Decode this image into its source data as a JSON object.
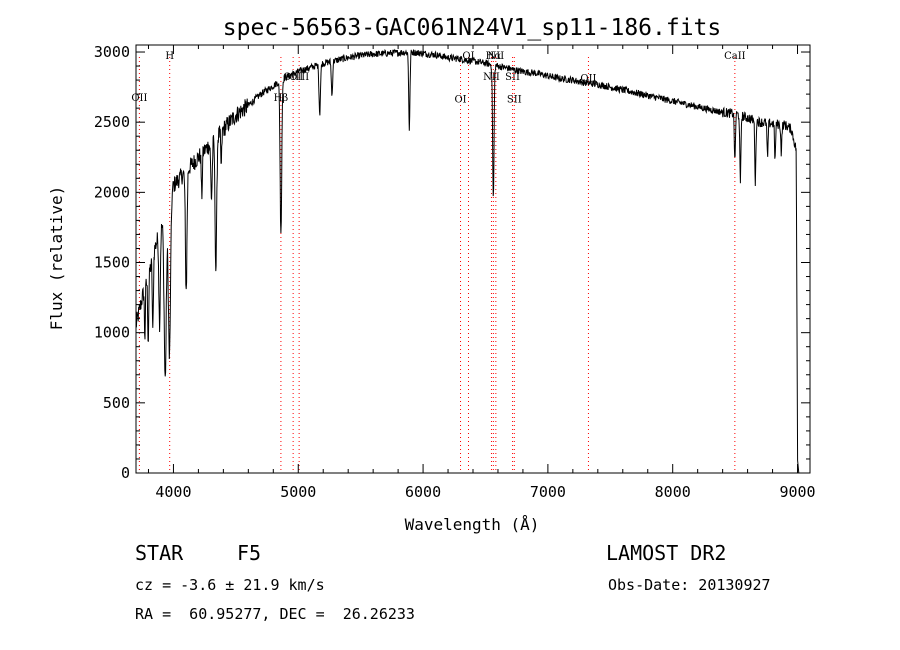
{
  "chart_data": {
    "type": "line",
    "title": "spec-56563-GAC061N24V1_sp11-186.fits",
    "xlabel": "Wavelength (Å)",
    "ylabel": "Flux (relative)",
    "xlim": [
      3700,
      9100
    ],
    "ylim": [
      0,
      3050
    ],
    "x_ticks": [
      4000,
      5000,
      6000,
      7000,
      8000,
      9000
    ],
    "y_ticks": [
      0,
      500,
      1000,
      1500,
      2000,
      2500,
      3000
    ],
    "grid": false,
    "line_color": "#000000",
    "line_marker_color": "#ff0000",
    "continuum": [
      [
        3700,
        1050
      ],
      [
        3750,
        1250
      ],
      [
        3800,
        1400
      ],
      [
        3850,
        1600
      ],
      [
        3900,
        1750
      ],
      [
        3950,
        1850
      ],
      [
        4000,
        2050
      ],
      [
        4100,
        2150
      ],
      [
        4200,
        2250
      ],
      [
        4300,
        2350
      ],
      [
        4400,
        2450
      ],
      [
        4500,
        2550
      ],
      [
        4600,
        2620
      ],
      [
        4700,
        2700
      ],
      [
        4800,
        2760
      ],
      [
        4900,
        2820
      ],
      [
        5000,
        2860
      ],
      [
        5100,
        2890
      ],
      [
        5200,
        2920
      ],
      [
        5300,
        2940
      ],
      [
        5400,
        2960
      ],
      [
        5500,
        2975
      ],
      [
        5600,
        2985
      ],
      [
        5700,
        2990
      ],
      [
        5800,
        2995
      ],
      [
        5900,
        3000
      ],
      [
        6000,
        2990
      ],
      [
        6100,
        2980
      ],
      [
        6200,
        2960
      ],
      [
        6300,
        2950
      ],
      [
        6400,
        2935
      ],
      [
        6500,
        2920
      ],
      [
        6600,
        2900
      ],
      [
        6700,
        2880
      ],
      [
        6800,
        2860
      ],
      [
        6900,
        2850
      ],
      [
        7000,
        2830
      ],
      [
        7100,
        2810
      ],
      [
        7200,
        2800
      ],
      [
        7300,
        2780
      ],
      [
        7400,
        2770
      ],
      [
        7500,
        2750
      ],
      [
        7600,
        2730
      ],
      [
        7700,
        2710
      ],
      [
        7800,
        2690
      ],
      [
        7900,
        2670
      ],
      [
        8000,
        2650
      ],
      [
        8100,
        2630
      ],
      [
        8200,
        2610
      ],
      [
        8300,
        2590
      ],
      [
        8400,
        2570
      ],
      [
        8500,
        2560
      ],
      [
        8600,
        2530
      ],
      [
        8700,
        2500
      ],
      [
        8800,
        2490
      ],
      [
        8900,
        2480
      ],
      [
        8950,
        2450
      ],
      [
        8990,
        2300
      ],
      [
        9000,
        100
      ],
      [
        9010,
        0
      ]
    ],
    "absorption_features": [
      {
        "center": 3934,
        "depth": 1150,
        "width": 12
      },
      {
        "center": 3968,
        "depth": 1100,
        "width": 12
      },
      {
        "center": 3889,
        "depth": 650,
        "width": 8
      },
      {
        "center": 3835,
        "depth": 550,
        "width": 6
      },
      {
        "center": 3798,
        "depth": 450,
        "width": 6
      },
      {
        "center": 3771,
        "depth": 350,
        "width": 5
      },
      {
        "center": 4102,
        "depth": 850,
        "width": 9
      },
      {
        "center": 4227,
        "depth": 300,
        "width": 6
      },
      {
        "center": 4305,
        "depth": 400,
        "width": 8
      },
      {
        "center": 4340,
        "depth": 950,
        "width": 9
      },
      {
        "center": 4383,
        "depth": 250,
        "width": 6
      },
      {
        "center": 4861,
        "depth": 1100,
        "width": 9
      },
      {
        "center": 5172,
        "depth": 350,
        "width": 8
      },
      {
        "center": 5270,
        "depth": 250,
        "width": 7
      },
      {
        "center": 5890,
        "depth": 550,
        "width": 7
      },
      {
        "center": 6563,
        "depth": 950,
        "width": 8
      },
      {
        "center": 8498,
        "depth": 350,
        "width": 6
      },
      {
        "center": 8542,
        "depth": 500,
        "width": 6
      },
      {
        "center": 8662,
        "depth": 450,
        "width": 6
      },
      {
        "center": 8760,
        "depth": 250,
        "width": 6
      },
      {
        "center": 8820,
        "depth": 250,
        "width": 6
      },
      {
        "center": 8870,
        "depth": 200,
        "width": 6
      }
    ],
    "noise_amplitude": 70,
    "line_markers": [
      {
        "label": "OII",
        "x": 3727,
        "label_y": 2650
      },
      {
        "label": "H",
        "x": 3970,
        "label_y": 2950
      },
      {
        "label": "Hβ",
        "x": 4861,
        "label_y": 2650
      },
      {
        "label": "OIII",
        "x": 4959,
        "label_y": 2800
      },
      {
        "label": "OIII",
        "x": 5007,
        "label_y": 2800
      },
      {
        "label": "OI",
        "x": 6300,
        "label_y": 2640
      },
      {
        "label": "OI",
        "x": 6364,
        "label_y": 2950
      },
      {
        "label": "NII",
        "x": 6548,
        "label_y": 2800
      },
      {
        "label": "Hα",
        "x": 6563,
        "label_y": 2950
      },
      {
        "label": "NII",
        "x": 6583,
        "label_y": 2950
      },
      {
        "label": "SII",
        "x": 6717,
        "label_y": 2800
      },
      {
        "label": "SII",
        "x": 6731,
        "label_y": 2640
      },
      {
        "label": "OII",
        "x": 7325,
        "label_y": 2790
      },
      {
        "label": "CaII",
        "x": 8498,
        "label_y": 2950
      }
    ]
  },
  "info": {
    "object_class": "STAR",
    "subclass": "F5",
    "survey": "LAMOST DR2",
    "cz": "cz = -3.6 ± 21.9 km/s",
    "obs_date": "Obs-Date: 20130927",
    "coords": "RA =  60.95277, DEC =  26.26233"
  }
}
